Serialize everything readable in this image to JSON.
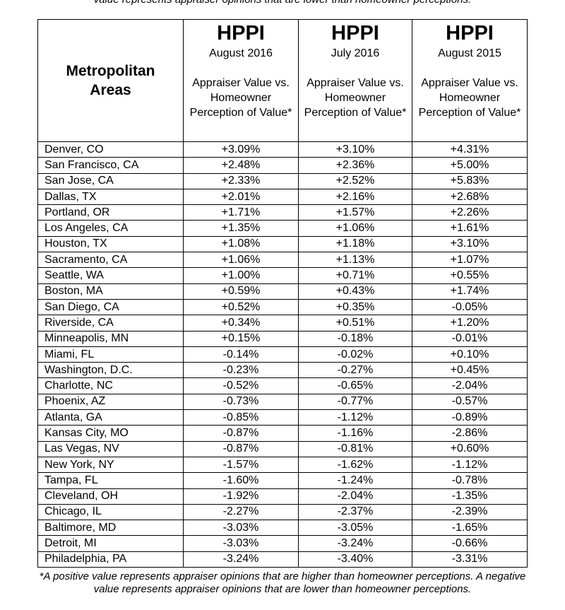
{
  "top_note": "value represents appraiser opinions that are lower than homeowner perceptions.",
  "table": {
    "area_header": "Metropolitan Areas",
    "columns": [
      {
        "title": "HPPI",
        "date": "August 2016",
        "desc": "Appraiser Value vs. Homeowner Perception of Value*"
      },
      {
        "title": "HPPI",
        "date": "July 2016",
        "desc": "Appraiser Value vs. Homeowner Perception of Value*"
      },
      {
        "title": "HPPI",
        "date": "August 2015",
        "desc": "Appraiser Value vs. Homeowner Perception of Value*"
      }
    ],
    "rows": [
      {
        "area": "Denver, CO",
        "values": [
          "+3.09%",
          "+3.10%",
          "+4.31%"
        ]
      },
      {
        "area": "San Francisco, CA",
        "values": [
          "+2.48%",
          "+2.36%",
          "+5.00%"
        ]
      },
      {
        "area": "San Jose, CA",
        "values": [
          "+2.33%",
          "+2.52%",
          "+5.83%"
        ]
      },
      {
        "area": "Dallas, TX",
        "values": [
          "+2.01%",
          "+2.16%",
          "+2.68%"
        ]
      },
      {
        "area": "Portland, OR",
        "values": [
          "+1.71%",
          "+1.57%",
          "+2.26%"
        ]
      },
      {
        "area": "Los Angeles, CA",
        "values": [
          "+1.35%",
          "+1.06%",
          "+1.61%"
        ]
      },
      {
        "area": "Houston, TX",
        "values": [
          "+1.08%",
          "+1.18%",
          "+3.10%"
        ]
      },
      {
        "area": "Sacramento, CA",
        "values": [
          "+1.06%",
          "+1.13%",
          "+1.07%"
        ]
      },
      {
        "area": "Seattle, WA",
        "values": [
          "+1.00%",
          "+0.71%",
          "+0.55%"
        ]
      },
      {
        "area": "Boston, MA",
        "values": [
          "+0.59%",
          "+0.43%",
          "+1.74%"
        ]
      },
      {
        "area": "San Diego, CA",
        "values": [
          "+0.52%",
          "+0.35%",
          "-0.05%"
        ]
      },
      {
        "area": "Riverside, CA",
        "values": [
          "+0.34%",
          "+0.51%",
          "+1.20%"
        ]
      },
      {
        "area": "Minneapolis, MN",
        "values": [
          "+0.15%",
          "-0.18%",
          "-0.01%"
        ]
      },
      {
        "area": "Miami, FL",
        "values": [
          "-0.14%",
          "-0.02%",
          "+0.10%"
        ]
      },
      {
        "area": "Washington, D.C.",
        "values": [
          "-0.23%",
          "-0.27%",
          "+0.45%"
        ]
      },
      {
        "area": "Charlotte, NC",
        "values": [
          "-0.52%",
          "-0.65%",
          "-2.04%"
        ]
      },
      {
        "area": "Phoenix, AZ",
        "values": [
          "-0.73%",
          "-0.77%",
          "-0.57%"
        ]
      },
      {
        "area": "Atlanta, GA",
        "values": [
          "-0.85%",
          "-1.12%",
          "-0.89%"
        ]
      },
      {
        "area": "Kansas City, MO",
        "values": [
          "-0.87%",
          "-1.16%",
          "-2.86%"
        ]
      },
      {
        "area": "Las Vegas, NV",
        "values": [
          "-0.87%",
          "-0.81%",
          "+0.60%"
        ]
      },
      {
        "area": "New York, NY",
        "values": [
          "-1.57%",
          "-1.62%",
          "-1.12%"
        ]
      },
      {
        "area": "Tampa, FL",
        "values": [
          "-1.60%",
          "-1.24%",
          "-0.78%"
        ]
      },
      {
        "area": "Cleveland, OH",
        "values": [
          "-1.92%",
          "-2.04%",
          "-1.35%"
        ]
      },
      {
        "area": "Chicago, IL",
        "values": [
          "-2.27%",
          "-2.37%",
          "-2.39%"
        ]
      },
      {
        "area": "Baltimore, MD",
        "values": [
          "-3.03%",
          "-3.05%",
          "-1.65%"
        ]
      },
      {
        "area": "Detroit, MI",
        "values": [
          "-3.03%",
          "-3.24%",
          "-0.66%"
        ]
      },
      {
        "area": "Philadelphia, PA",
        "values": [
          "-3.24%",
          "-3.40%",
          "-3.31%"
        ]
      }
    ]
  },
  "footnote": {
    "line1": "*A positive value represents appraiser opinions that are higher than homeowner perceptions. A negative",
    "line2": "value represents appraiser opinions that are lower than homeowner perceptions."
  }
}
